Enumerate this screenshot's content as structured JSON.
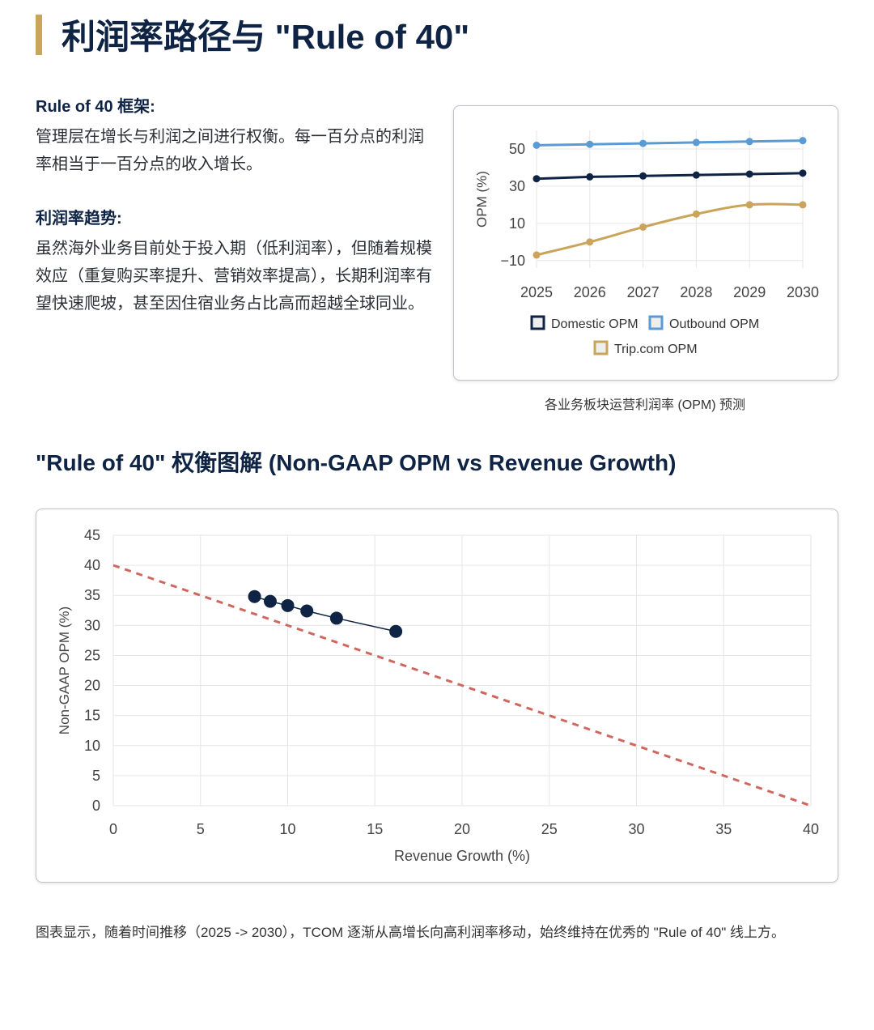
{
  "page": {
    "title": "利润率路径与 \"Rule of 40\"",
    "accent_color": "#c9a45a",
    "heading_color": "#0f2444"
  },
  "framework": {
    "heading": "Rule of 40 框架:",
    "body": "管理层在增长与利润之间进行权衡。每一百分点的利润率相当于一百分点的收入增长。"
  },
  "trend": {
    "heading": "利润率趋势:",
    "body": "虽然海外业务目前处于投入期（低利润率），但随着规模效应（重复购买率提升、营销效率提高），长期利润率有望快速爬坡，甚至因住宿业务占比高而超越全球同业。"
  },
  "opm_chart_caption": "各业务板块运营利润率 (OPM) 预测",
  "section": {
    "title": "\"Rule of 40\" 权衡图解 (Non-GAAP OPM vs Revenue Growth)"
  },
  "footnote": "图表显示，随着时间推移（2025 -> 2030），TCOM 逐渐从高增长向高利润率移动，始终维持在优秀的 \"Rule of 40\" 线上方。",
  "chart_data": [
    {
      "type": "line",
      "title": "",
      "xlabel": "",
      "ylabel": "OPM (%)",
      "x": [
        "2025",
        "2026",
        "2027",
        "2028",
        "2029",
        "2030"
      ],
      "yticks": [
        -10,
        10,
        30,
        50
      ],
      "ylim": [
        -14,
        60
      ],
      "grid": true,
      "legend_position": "bottom",
      "series": [
        {
          "name": "Domestic OPM",
          "color": "#0f2444",
          "values": [
            34,
            35,
            35.5,
            36,
            36.5,
            37
          ]
        },
        {
          "name": "Outbound OPM",
          "color": "#5b9bd5",
          "values": [
            52,
            52.5,
            53,
            53.5,
            54,
            54.5
          ]
        },
        {
          "name": "Trip.com OPM",
          "color": "#c9a45a",
          "values": [
            -7,
            0,
            8,
            15,
            20,
            20
          ]
        }
      ]
    },
    {
      "type": "scatter",
      "title": "",
      "xlabel": "Revenue Growth (%)",
      "ylabel": "Non-GAAP OPM (%)",
      "xlim": [
        0,
        40
      ],
      "ylim": [
        0,
        45
      ],
      "xticks": [
        0,
        5,
        10,
        15,
        20,
        25,
        30,
        35,
        40
      ],
      "yticks": [
        0,
        5,
        10,
        15,
        20,
        25,
        30,
        35,
        40,
        45
      ],
      "grid": true,
      "series": [
        {
          "color": "#0f2444",
          "points": [
            {
              "x": 16.2,
              "y": 29
            },
            {
              "x": 12.8,
              "y": 31.2
            },
            {
              "x": 11.1,
              "y": 32.4
            },
            {
              "x": 10.0,
              "y": 33.3
            },
            {
              "x": 9.0,
              "y": 34.0
            },
            {
              "x": 8.1,
              "y": 34.8
            }
          ]
        }
      ],
      "reference_line": {
        "color": "#d0675f",
        "style": "dashed",
        "points": [
          {
            "x": 0,
            "y": 40
          },
          {
            "x": 40,
            "y": 0
          }
        ]
      }
    }
  ]
}
